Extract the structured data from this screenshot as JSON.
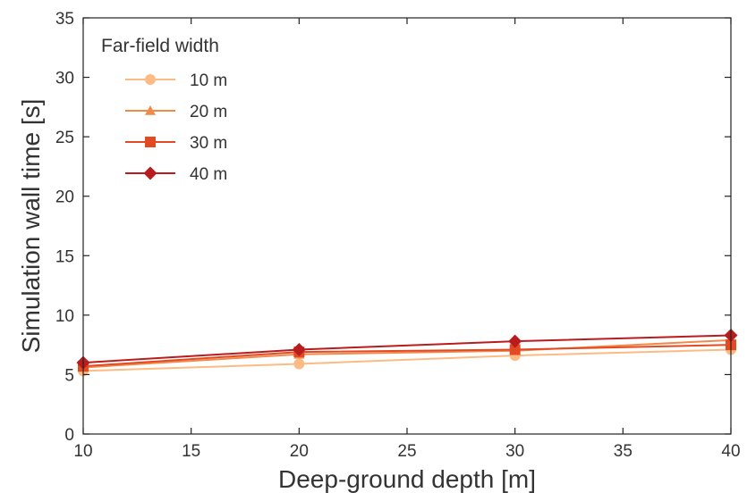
{
  "chart_data": {
    "type": "line",
    "title": "",
    "xlabel": "Deep-ground depth [m]",
    "ylabel": "Simulation wall time [s]",
    "xlim": [
      10,
      40
    ],
    "ylim": [
      0,
      35
    ],
    "xticks": [
      "10",
      "15",
      "20",
      "25",
      "30",
      "35",
      "40"
    ],
    "yticks": [
      "0",
      "5",
      "10",
      "15",
      "20",
      "25",
      "30",
      "35"
    ],
    "grid": false,
    "legend": {
      "title": "Far-field width",
      "placement": "top-left"
    },
    "series": [
      {
        "name": "10 m",
        "marker": "circle",
        "color": "#fdbb84",
        "x": [
          10,
          20,
          30,
          40
        ],
        "y": [
          5.3,
          5.9,
          6.6,
          7.1
        ]
      },
      {
        "name": "20 m",
        "marker": "triangle",
        "color": "#f08a4b",
        "x": [
          10,
          20,
          30,
          40
        ],
        "y": [
          5.6,
          6.7,
          7.0,
          7.9
        ]
      },
      {
        "name": "30 m",
        "marker": "square",
        "color": "#e34a24",
        "x": [
          10,
          20,
          30,
          40
        ],
        "y": [
          5.7,
          6.9,
          7.1,
          7.5
        ]
      },
      {
        "name": "40 m",
        "marker": "diamond",
        "color": "#b81c1c",
        "x": [
          10,
          20,
          30,
          40
        ],
        "y": [
          6.0,
          7.1,
          7.8,
          8.3
        ]
      }
    ]
  }
}
